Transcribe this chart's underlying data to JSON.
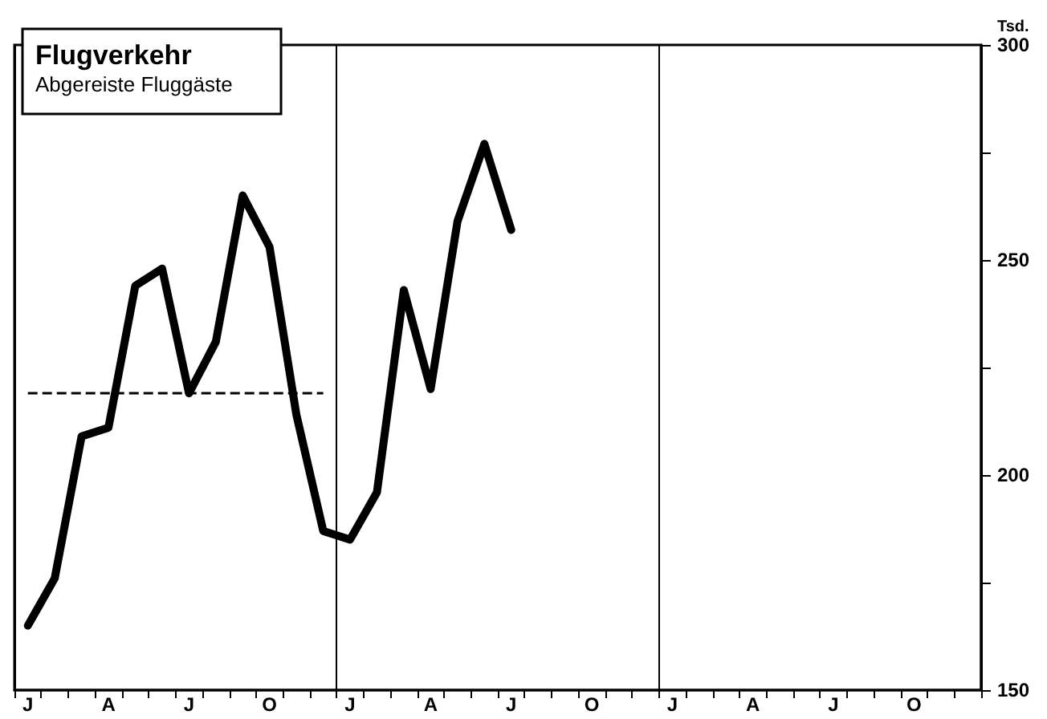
{
  "chart_data": {
    "type": "line",
    "title": "Flugverkehr",
    "subtitle": "Abgereiste Fluggäste",
    "ylabel": "Tsd.",
    "categories": [
      "J",
      null,
      null,
      "A",
      null,
      null,
      "J",
      null,
      null,
      "O",
      null,
      null,
      "J",
      null,
      null,
      "A",
      null,
      null,
      "J",
      null,
      null,
      "O",
      null,
      null,
      "J",
      null,
      null,
      "A",
      null,
      null,
      "J",
      null,
      null,
      "O",
      null,
      null
    ],
    "series": [
      {
        "color": "#000000",
        "values": [
          165,
          176,
          209,
          211,
          244,
          248,
          219,
          231,
          265,
          253,
          214,
          187,
          185,
          196,
          243,
          220,
          259,
          277,
          257,
          null,
          null,
          null,
          null,
          null,
          null,
          null,
          null,
          null,
          null,
          null,
          null,
          null,
          null,
          null,
          null,
          null
        ]
      }
    ],
    "ylim": [
      150,
      300
    ],
    "yticks": [
      150,
      {
        "value": 175,
        "label": null
      },
      200,
      {
        "value": 225,
        "label": null
      },
      250,
      {
        "value": 275,
        "label": null
      },
      300
    ],
    "ref_lines": [
      {
        "axis": "y",
        "value": 219,
        "color": "#000000",
        "line_style": "dashed"
      }
    ],
    "grid": "x",
    "marker": "none",
    "line_style": "solid"
  }
}
